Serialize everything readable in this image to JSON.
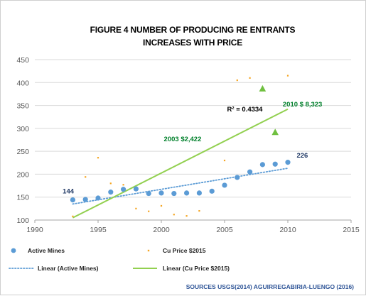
{
  "chart_data": {
    "type": "scatter",
    "title_lines": [
      "FIGURE 4 NUMBER OF PRODUCING RE ENTRANTS",
      "INCREASES WITH PRICE"
    ],
    "xlim": [
      1990,
      2015
    ],
    "ylim": [
      100,
      450
    ],
    "x_ticks": [
      1990,
      1995,
      2000,
      2005,
      2010,
      2015
    ],
    "y_ticks": [
      100,
      150,
      200,
      250,
      300,
      350,
      400,
      450
    ],
    "grid": "horizontal",
    "legend_position": "bottom",
    "series": [
      {
        "name": "Active Mines",
        "marker": "circle",
        "color": "#5b9bd5",
        "x": [
          1993,
          1994,
          1995,
          1996,
          1997,
          1998,
          1999,
          2000,
          2001,
          2002,
          2003,
          2004,
          2005,
          2006,
          2007,
          2008,
          2009,
          2010
        ],
        "y": [
          144,
          145,
          148,
          161,
          167,
          168,
          158,
          159,
          158,
          159,
          159,
          163,
          176,
          193,
          205,
          221,
          222,
          226
        ]
      },
      {
        "name": "Cu Price $2015",
        "marker": "point",
        "color": "#f5a623",
        "x": [
          1993,
          1994,
          1995,
          1996,
          1997,
          1998,
          1999,
          2000,
          2001,
          2002,
          2003,
          2005,
          2006,
          2007,
          2010
        ],
        "y": [
          108,
          194,
          236,
          180,
          177,
          125,
          119,
          131,
          112,
          109,
          120,
          230,
          405,
          410,
          415
        ]
      },
      {
        "name": "Cu Price $2015 (highlighted)",
        "marker": "triangle",
        "color": "#70c040",
        "x": [
          2008,
          2009
        ],
        "y": [
          386,
          291
        ]
      }
    ],
    "trendlines": [
      {
        "name": "Linear (Active Mines)",
        "style": "dotted",
        "color": "#5b9bd5",
        "x": [
          1993,
          2010
        ],
        "y": [
          135,
          213
        ]
      },
      {
        "name": "Linear (Cu Price $2015)",
        "style": "solid",
        "color": "#92d050",
        "x": [
          1993,
          2010
        ],
        "y": [
          105,
          342
        ]
      }
    ],
    "annotations": [
      {
        "text": "144",
        "color": "#1f3864",
        "x": 1992.2,
        "y": 158
      },
      {
        "text": "226",
        "color": "#1f3864",
        "x": 2010.7,
        "y": 236
      },
      {
        "text": "R² = 0.4334",
        "color": "#000000",
        "x": 2005.2,
        "y": 337
      },
      {
        "text": "2003 $2,422",
        "color": "#00802b",
        "x": 2000.2,
        "y": 272
      },
      {
        "text": "2010 $ 8,323",
        "color": "#00802b",
        "x": 2009.6,
        "y": 348
      }
    ],
    "legend": [
      {
        "label": "Active Mines",
        "marker": "circle",
        "color": "#5b9bd5"
      },
      {
        "label": "Cu Price $2015",
        "marker": "point",
        "color": "#f5a623"
      },
      {
        "label": "Linear (Active Mines)",
        "marker": "dotted-line",
        "color": "#5b9bd5"
      },
      {
        "label": "Linear (Cu Price $2015)",
        "marker": "solid-line",
        "color": "#92d050"
      }
    ],
    "source": "SOURCES USGS(2014) AGUIRREGABIRIA-LUENGO (2016)"
  }
}
